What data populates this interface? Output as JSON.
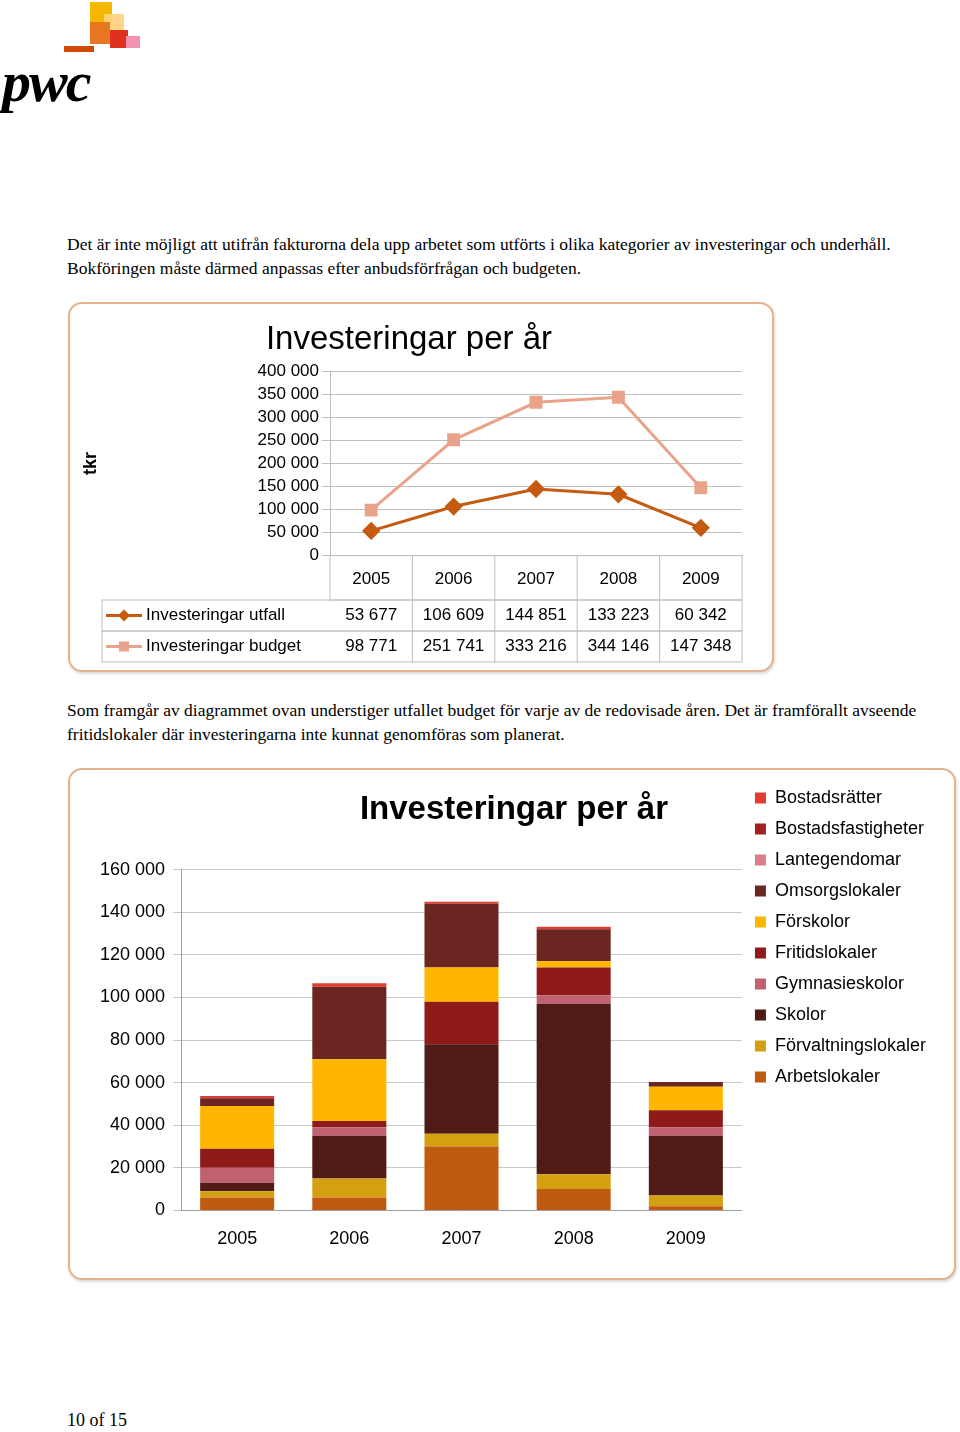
{
  "logo": "pwc",
  "paragraphs": [
    "Det är inte möjligt att utifrån fakturorna dela upp arbetet som utförts i olika kategorier av investeringar och underhåll. Bokföringen måste därmed anpassas efter anbudsförfrågan och budgeten.",
    "Som framgår av diagrammet ovan understiger utfallet budget för varje av de redovisade åren. Det är framförallt avseende fritidslokaler där investeringarna inte kunnat genomföras som planerat."
  ],
  "page_number": "10 of 15",
  "chart_data": [
    {
      "type": "line",
      "title": "Investeringar per år",
      "y_label": "tkr",
      "categories": [
        "2005",
        "2006",
        "2007",
        "2008",
        "2009"
      ],
      "series": [
        {
          "name": "Investeringar utfall",
          "color": "#c55a11",
          "marker": "diamond",
          "values": [
            53677,
            106609,
            144851,
            133223,
            60342
          ],
          "value_labels": [
            "53 677",
            "106 609",
            "144 851",
            "133 223",
            "60 342"
          ]
        },
        {
          "name": "Investeringar budget",
          "color": "#e9a38a",
          "marker": "square",
          "values": [
            98771,
            251741,
            333216,
            344146,
            147348
          ],
          "value_labels": [
            "98 771",
            "251 741",
            "333 216",
            "344 146",
            "147 348"
          ]
        }
      ],
      "ylim": [
        0,
        400000
      ],
      "yticks": [
        0,
        {
          "value": 50000,
          "label": "50 000"
        },
        {
          "value": 100000,
          "label": "100 000"
        },
        {
          "value": 150000,
          "label": "150 000"
        },
        {
          "value": 200000,
          "label": "200 000"
        },
        {
          "value": 250000,
          "label": "250 000"
        },
        {
          "value": 300000,
          "label": "300 000"
        },
        {
          "value": 350000,
          "label": "350 000"
        },
        {
          "value": 400000,
          "label": "400 000"
        }
      ],
      "grid": true
    },
    {
      "type": "bar",
      "title": "Investeringar per år",
      "categories": [
        "2005",
        "2006",
        "2007",
        "2008",
        "2009"
      ],
      "stacked": true,
      "legend": "right",
      "series": [
        {
          "name": "Bostadsrätter",
          "color": "#e03c31",
          "values": [
            1000,
            1600,
            850,
            1200,
            0
          ]
        },
        {
          "name": "Bostadsfastigheter",
          "color": "#a32020",
          "values": [
            0,
            0,
            0,
            0,
            0
          ]
        },
        {
          "name": "Lantegendomar",
          "color": "#db7f88",
          "values": [
            0,
            0,
            0,
            0,
            0
          ]
        },
        {
          "name": "Omsorgslokaler",
          "color": "#6b2622",
          "values": [
            3700,
            34000,
            30000,
            15000,
            2300
          ]
        },
        {
          "name": "Förskolor",
          "color": "#ffb600",
          "values": [
            20000,
            29000,
            16000,
            3000,
            11000
          ]
        },
        {
          "name": "Fritidslokaler",
          "color": "#8e1a1a",
          "values": [
            9000,
            3000,
            20000,
            13000,
            8000
          ]
        },
        {
          "name": "Gymnasieskolor",
          "color": "#c06070",
          "values": [
            7000,
            4000,
            0,
            4000,
            4000
          ]
        },
        {
          "name": "Skolor",
          "color": "#4f1b14",
          "values": [
            4000,
            20000,
            42000,
            80000,
            28000
          ]
        },
        {
          "name": "Förvaltningslokaler",
          "color": "#d4a012",
          "values": [
            3000,
            9000,
            6000,
            7000,
            5000
          ]
        },
        {
          "name": "Arbetslokaler",
          "color": "#c05a10",
          "values": [
            6000,
            6000,
            30000,
            10000,
            2000
          ]
        }
      ],
      "ylim": [
        0,
        160000
      ],
      "yticks": [
        0,
        {
          "value": 20000,
          "label": "20 000"
        },
        {
          "value": 40000,
          "label": "40 000"
        },
        {
          "value": 60000,
          "label": "60 000"
        },
        {
          "value": 80000,
          "label": "80 000"
        },
        {
          "value": 100000,
          "label": "100 000"
        },
        {
          "value": 120000,
          "label": "120 000"
        },
        {
          "value": 140000,
          "label": "140 000"
        },
        {
          "value": 160000,
          "label": "160 000"
        }
      ],
      "grid": true
    }
  ]
}
